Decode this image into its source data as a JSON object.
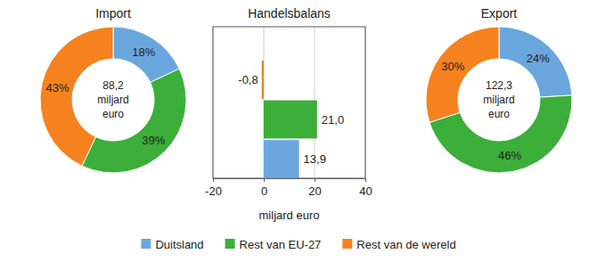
{
  "chart_data": [
    {
      "type": "pie",
      "title": "Import",
      "categories": [
        "Duitsland",
        "Rest van EU-27",
        "Rest van de wereld"
      ],
      "values": [
        18,
        39,
        43
      ],
      "value_labels": [
        "18%",
        "39%",
        "43%"
      ],
      "colors": [
        "#6aa6de",
        "#3cae3a",
        "#f5821f"
      ],
      "data_labels": true,
      "legend": "bottom",
      "total": {
        "value": 88.2,
        "label": "88,2"
      },
      "total_unit": [
        "miljard",
        "euro"
      ]
    },
    {
      "type": "bar",
      "title": "Handelsbalans",
      "orientation": "horizontal",
      "categories": [
        null,
        null,
        null
      ],
      "values": [
        -0.8,
        21.0,
        13.9
      ],
      "value_labels": [
        "-0,8",
        "21,0",
        "13,9"
      ],
      "colors": [
        "#f5821f",
        "#3cae3a",
        "#6aa6de"
      ],
      "xlabel": "miljard euro",
      "xlim": [
        -20,
        40
      ],
      "xticks": [
        -20,
        0,
        20,
        40
      ],
      "grid": true,
      "data_labels": true
    },
    {
      "type": "pie",
      "title": "Export",
      "categories": [
        "Duitsland",
        "Rest van EU-27",
        "Rest van de wereld"
      ],
      "values": [
        24,
        46,
        30
      ],
      "value_labels": [
        "24%",
        "46%",
        "30%"
      ],
      "colors": [
        "#6aa6de",
        "#3cae3a",
        "#f5821f"
      ],
      "data_labels": true,
      "total": {
        "value": 122.3,
        "label": "122,3"
      },
      "total_unit": [
        "miljard",
        "euro"
      ]
    }
  ]
}
